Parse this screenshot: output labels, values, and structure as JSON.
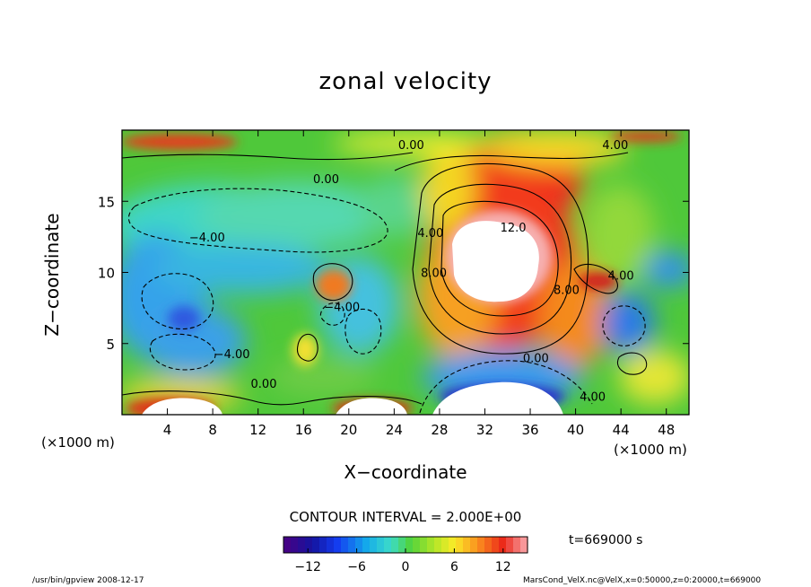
{
  "chart_data": {
    "type": "heatmap",
    "title": "zonal velocity",
    "xlabel": "X−coordinate",
    "ylabel": "Z−coordinate",
    "x_unit_left": "(×1000 m)",
    "x_unit_right": "(×1000 m)",
    "xlim": [
      0,
      50
    ],
    "ylim": [
      0,
      20
    ],
    "x_ticks": [
      4,
      8,
      12,
      16,
      20,
      24,
      28,
      32,
      36,
      40,
      44,
      48
    ],
    "y_ticks": [
      5,
      10,
      15
    ],
    "contour_labels": [
      {
        "text": "−4.00",
        "x": 7.5,
        "y": 12.5
      },
      {
        "text": "−4.00",
        "x": 9.7,
        "y": 4.3
      },
      {
        "text": "−4.00",
        "x": 19.4,
        "y": 7.6
      },
      {
        "text": "0.00",
        "x": 12.5,
        "y": 2.2
      },
      {
        "text": "0.00",
        "x": 36.5,
        "y": 4.0
      },
      {
        "text": "0.00",
        "x": 18.0,
        "y": 16.6
      },
      {
        "text": "0.00",
        "x": 25.5,
        "y": 19.0
      },
      {
        "text": "4.00",
        "x": 43.5,
        "y": 19.0
      },
      {
        "text": "4.00",
        "x": 27.2,
        "y": 12.8
      },
      {
        "text": "4.00",
        "x": 44.0,
        "y": 9.8
      },
      {
        "text": "4.00",
        "x": 41.5,
        "y": 1.3
      },
      {
        "text": "8.00",
        "x": 27.5,
        "y": 10.0
      },
      {
        "text": "8.00",
        "x": 39.2,
        "y": 8.8
      },
      {
        "text": "12.0",
        "x": 34.5,
        "y": 13.2
      }
    ],
    "colorbar": {
      "min": -15,
      "max": 15,
      "tick_values": [
        -12,
        -6,
        0,
        6,
        12
      ],
      "tick_labels": [
        "−12",
        "−6",
        "0",
        "6",
        "12"
      ]
    },
    "grid": false,
    "legend": "bottom colorbar"
  },
  "contour_interval": "CONTOUR INTERVAL = 2.000E+00",
  "time_label": "t=669000 s",
  "footer_left": "/usr/bin/gpview  2008-12-17",
  "footer_right": "MarsCond_VelX.nc@VelX,x=0:50000,z=0:20000,t=669000"
}
